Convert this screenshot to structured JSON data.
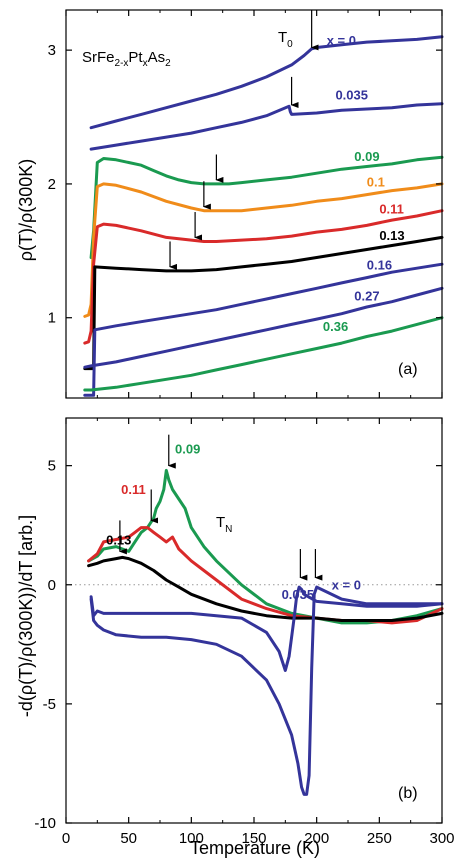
{
  "chart_data": [
    {
      "type": "line",
      "panel_label": "(a)",
      "title": "",
      "formula": {
        "base": "SrFe",
        "sub1": "2-x",
        "mid": "Pt",
        "sub2": "x",
        "end": "As",
        "sub3": "2"
      },
      "ylabel": "ρ(T)/ρ(300K)",
      "xlabel": "",
      "xlim": [
        0,
        300
      ],
      "ylim": [
        0.4,
        3.3
      ],
      "xticks": [
        0,
        50,
        100,
        150,
        200,
        250,
        300
      ],
      "yticks": [
        1,
        2,
        3
      ],
      "yticklabels": [
        "1",
        "2",
        "3"
      ],
      "grid": false,
      "annotation": {
        "base": "T",
        "sub": "0"
      },
      "series": [
        {
          "name": "x = 0",
          "color": "#34349a",
          "label_at": [
            208,
            3.04
          ],
          "x": [
            20,
            40,
            60,
            80,
            100,
            120,
            140,
            160,
            180,
            190,
            196,
            200,
            220,
            240,
            260,
            280,
            300
          ],
          "y": [
            2.42,
            2.47,
            2.52,
            2.57,
            2.62,
            2.67,
            2.73,
            2.8,
            2.89,
            2.96,
            3.01,
            3.02,
            3.04,
            3.06,
            3.07,
            3.08,
            3.1
          ]
        },
        {
          "name": "0.035",
          "color": "#34349a",
          "label_at": [
            215,
            2.63
          ],
          "x": [
            20,
            40,
            60,
            80,
            100,
            120,
            140,
            160,
            178,
            179,
            180,
            200,
            220,
            240,
            260,
            280,
            300
          ],
          "y": [
            2.26,
            2.29,
            2.32,
            2.35,
            2.38,
            2.42,
            2.46,
            2.51,
            2.58,
            2.54,
            2.52,
            2.53,
            2.55,
            2.56,
            2.57,
            2.59,
            2.6
          ]
        },
        {
          "name": "0.09",
          "color": "#1a9a50",
          "label_at": [
            230,
            2.17
          ],
          "x": [
            20,
            22,
            25,
            30,
            40,
            50,
            60,
            70,
            80,
            90,
            100,
            110,
            120,
            130,
            140,
            160,
            180,
            200,
            220,
            240,
            260,
            280,
            300
          ],
          "y": [
            1.45,
            1.65,
            2.16,
            2.19,
            2.18,
            2.16,
            2.14,
            2.1,
            2.06,
            2.03,
            2.01,
            2.0,
            2.0,
            2.0,
            2.01,
            2.03,
            2.05,
            2.08,
            2.11,
            2.13,
            2.15,
            2.18,
            2.2
          ]
        },
        {
          "name": "0.1",
          "color": "#f08c1a",
          "label_at": [
            240,
            1.98
          ],
          "x": [
            15,
            18,
            20,
            22,
            25,
            30,
            40,
            60,
            80,
            100,
            110,
            120,
            140,
            160,
            180,
            200,
            220,
            240,
            260,
            280,
            300
          ],
          "y": [
            1.01,
            1.02,
            1.1,
            1.6,
            1.98,
            2.0,
            1.99,
            1.94,
            1.87,
            1.82,
            1.8,
            1.8,
            1.8,
            1.82,
            1.84,
            1.87,
            1.89,
            1.92,
            1.95,
            1.97,
            2.0
          ]
        },
        {
          "name": "0.11",
          "color": "#d92a2a",
          "label_at": [
            250,
            1.78
          ],
          "x": [
            15,
            18,
            20,
            22,
            25,
            30,
            40,
            60,
            80,
            100,
            110,
            120,
            140,
            160,
            180,
            200,
            220,
            240,
            260,
            280,
            300
          ],
          "y": [
            0.81,
            0.82,
            0.9,
            1.4,
            1.68,
            1.7,
            1.69,
            1.65,
            1.6,
            1.58,
            1.57,
            1.57,
            1.58,
            1.59,
            1.61,
            1.64,
            1.66,
            1.69,
            1.73,
            1.76,
            1.8
          ]
        },
        {
          "name": "0.13",
          "color": "#000000",
          "label_at": [
            250,
            1.58
          ],
          "x": [
            15,
            22,
            22.5,
            23,
            40,
            60,
            80,
            100,
            120,
            140,
            160,
            180,
            200,
            220,
            240,
            260,
            280,
            300
          ],
          "y": [
            0.62,
            0.62,
            1.0,
            1.38,
            1.37,
            1.36,
            1.35,
            1.35,
            1.36,
            1.38,
            1.4,
            1.42,
            1.45,
            1.48,
            1.51,
            1.54,
            1.57,
            1.6
          ]
        },
        {
          "name": "0.16",
          "color": "#34349a",
          "label_at": [
            240,
            1.36
          ],
          "x": [
            15,
            22,
            23,
            40,
            60,
            80,
            100,
            120,
            140,
            160,
            180,
            200,
            220,
            240,
            260,
            280,
            300
          ],
          "y": [
            0.42,
            0.42,
            0.91,
            0.94,
            0.97,
            1.0,
            1.03,
            1.06,
            1.1,
            1.14,
            1.18,
            1.22,
            1.26,
            1.3,
            1.34,
            1.37,
            1.4
          ]
        },
        {
          "name": "0.27",
          "color": "#34349a",
          "label_at": [
            230,
            1.13
          ],
          "x": [
            15,
            20,
            40,
            60,
            80,
            100,
            120,
            140,
            160,
            180,
            200,
            220,
            240,
            260,
            280,
            300
          ],
          "y": [
            0.63,
            0.64,
            0.67,
            0.71,
            0.75,
            0.79,
            0.83,
            0.87,
            0.91,
            0.95,
            0.99,
            1.03,
            1.08,
            1.12,
            1.17,
            1.22
          ]
        },
        {
          "name": "0.36",
          "color": "#1a9a50",
          "label_at": [
            205,
            0.9
          ],
          "x": [
            15,
            20,
            40,
            60,
            80,
            100,
            120,
            140,
            160,
            180,
            200,
            220,
            240,
            260,
            280,
            300
          ],
          "y": [
            0.46,
            0.46,
            0.48,
            0.51,
            0.54,
            0.57,
            0.61,
            0.65,
            0.69,
            0.73,
            0.77,
            0.81,
            0.86,
            0.9,
            0.95,
            1.0
          ]
        }
      ],
      "arrows": [
        {
          "x": 196,
          "y_tip": 3.02,
          "y_tail": 3.3
        },
        {
          "x": 180,
          "y_tip": 2.59,
          "y_tail": 2.8
        },
        {
          "x": 120,
          "y_tip": 2.03,
          "y_tail": 2.22
        },
        {
          "x": 110,
          "y_tip": 1.83,
          "y_tail": 2.02
        },
        {
          "x": 103,
          "y_tip": 1.6,
          "y_tail": 1.79
        },
        {
          "x": 83,
          "y_tip": 1.38,
          "y_tail": 1.57
        }
      ]
    },
    {
      "type": "line",
      "panel_label": "(b)",
      "title": "",
      "ylabel": "-d(ρ(T)/ρ(300K))/dT [arb.]",
      "xlabel": "Temperature (K)",
      "xlim": [
        0,
        300
      ],
      "ylim": [
        -10,
        7
      ],
      "xticks": [
        0,
        50,
        100,
        150,
        200,
        250,
        300
      ],
      "yticks": [
        5,
        0,
        -5,
        -10
      ],
      "yticklabels": [
        "5",
        "0",
        "-5",
        "-10"
      ],
      "zero_line": true,
      "grid": false,
      "annotation": {
        "base": "T",
        "sub": "N"
      },
      "series": [
        {
          "name": "0.09",
          "color": "#1a9a50",
          "label_at": [
            87,
            5.5
          ],
          "x": [
            18,
            25,
            30,
            40,
            50,
            55,
            60,
            65,
            70,
            72,
            75,
            78,
            80,
            82,
            85,
            90,
            95,
            100,
            110,
            120,
            140,
            160,
            180,
            200,
            220,
            240,
            260,
            280,
            300
          ],
          "y": [
            1.0,
            1.2,
            1.5,
            1.6,
            1.4,
            1.8,
            2.2,
            2.4,
            2.8,
            3.2,
            3.5,
            4.0,
            4.8,
            4.4,
            4.0,
            3.6,
            3.2,
            2.4,
            1.6,
            1.0,
            0.0,
            -0.8,
            -1.2,
            -1.4,
            -1.6,
            -1.6,
            -1.5,
            -1.3,
            -1.0
          ]
        },
        {
          "name": "0.11",
          "color": "#d92a2a",
          "label_at": [
            44,
            3.8
          ],
          "x": [
            18,
            25,
            30,
            40,
            50,
            55,
            60,
            65,
            70,
            75,
            80,
            85,
            90,
            100,
            110,
            120,
            140,
            160,
            180,
            200,
            220,
            240,
            260,
            280,
            300
          ],
          "y": [
            1.0,
            1.3,
            1.8,
            1.9,
            2.0,
            2.2,
            2.4,
            2.4,
            2.2,
            2.0,
            1.8,
            2.0,
            1.5,
            1.0,
            0.6,
            0.2,
            -0.6,
            -1.0,
            -1.3,
            -1.4,
            -1.5,
            -1.5,
            -1.6,
            -1.5,
            -1.0
          ]
        },
        {
          "name": "0.13",
          "color": "#000000",
          "label_at": [
            32,
            1.7
          ],
          "x": [
            18,
            25,
            30,
            40,
            45,
            50,
            60,
            70,
            80,
            90,
            100,
            120,
            140,
            160,
            180,
            200,
            220,
            240,
            260,
            280,
            300
          ],
          "y": [
            0.8,
            0.9,
            1.0,
            1.1,
            1.15,
            1.1,
            0.9,
            0.6,
            0.2,
            -0.1,
            -0.4,
            -0.8,
            -1.1,
            -1.3,
            -1.4,
            -1.4,
            -1.5,
            -1.5,
            -1.5,
            -1.4,
            -1.2
          ]
        },
        {
          "name": "0.035",
          "color": "#34349a",
          "label_at": [
            172,
            -0.6
          ],
          "x": [
            20,
            22,
            25,
            30,
            40,
            60,
            80,
            100,
            120,
            140,
            160,
            170,
            175,
            178,
            180,
            182,
            184,
            186,
            188,
            190,
            200,
            220,
            240,
            260,
            280,
            300
          ],
          "y": [
            -0.5,
            -1.3,
            -1.1,
            -1.2,
            -1.2,
            -1.2,
            -1.2,
            -1.2,
            -1.3,
            -1.4,
            -2.0,
            -2.8,
            -3.6,
            -3.0,
            -2.2,
            -1.4,
            -0.5,
            -0.1,
            -0.2,
            -0.4,
            -0.7,
            -0.8,
            -0.9,
            -0.9,
            -0.9,
            -0.8
          ]
        },
        {
          "name": "x = 0",
          "color": "#34349a",
          "label_at": [
            212,
            -0.2
          ],
          "x": [
            20,
            22,
            25,
            30,
            40,
            60,
            80,
            100,
            120,
            140,
            160,
            170,
            180,
            185,
            188,
            190,
            192,
            194,
            196,
            198,
            200,
            220,
            240,
            260,
            280,
            300
          ],
          "y": [
            -0.6,
            -1.5,
            -1.7,
            -1.9,
            -2.1,
            -2.2,
            -2.2,
            -2.3,
            -2.5,
            -3.0,
            -4.0,
            -5.0,
            -6.3,
            -7.5,
            -8.5,
            -8.8,
            -8.8,
            -8.0,
            -3.5,
            -0.4,
            -0.1,
            -0.6,
            -0.8,
            -0.8,
            -0.8,
            -0.8
          ]
        }
      ],
      "arrows": [
        {
          "x": 82,
          "y_tip": 5.0,
          "y_tail": 6.3
        },
        {
          "x": 68,
          "y_tip": 2.7,
          "y_tail": 4.0
        },
        {
          "x": 43,
          "y_tip": 1.4,
          "y_tail": 2.7
        },
        {
          "x": 187,
          "y_tip": 0.3,
          "y_tail": 1.5
        },
        {
          "x": 199,
          "y_tip": 0.3,
          "y_tail": 1.5
        }
      ]
    }
  ]
}
